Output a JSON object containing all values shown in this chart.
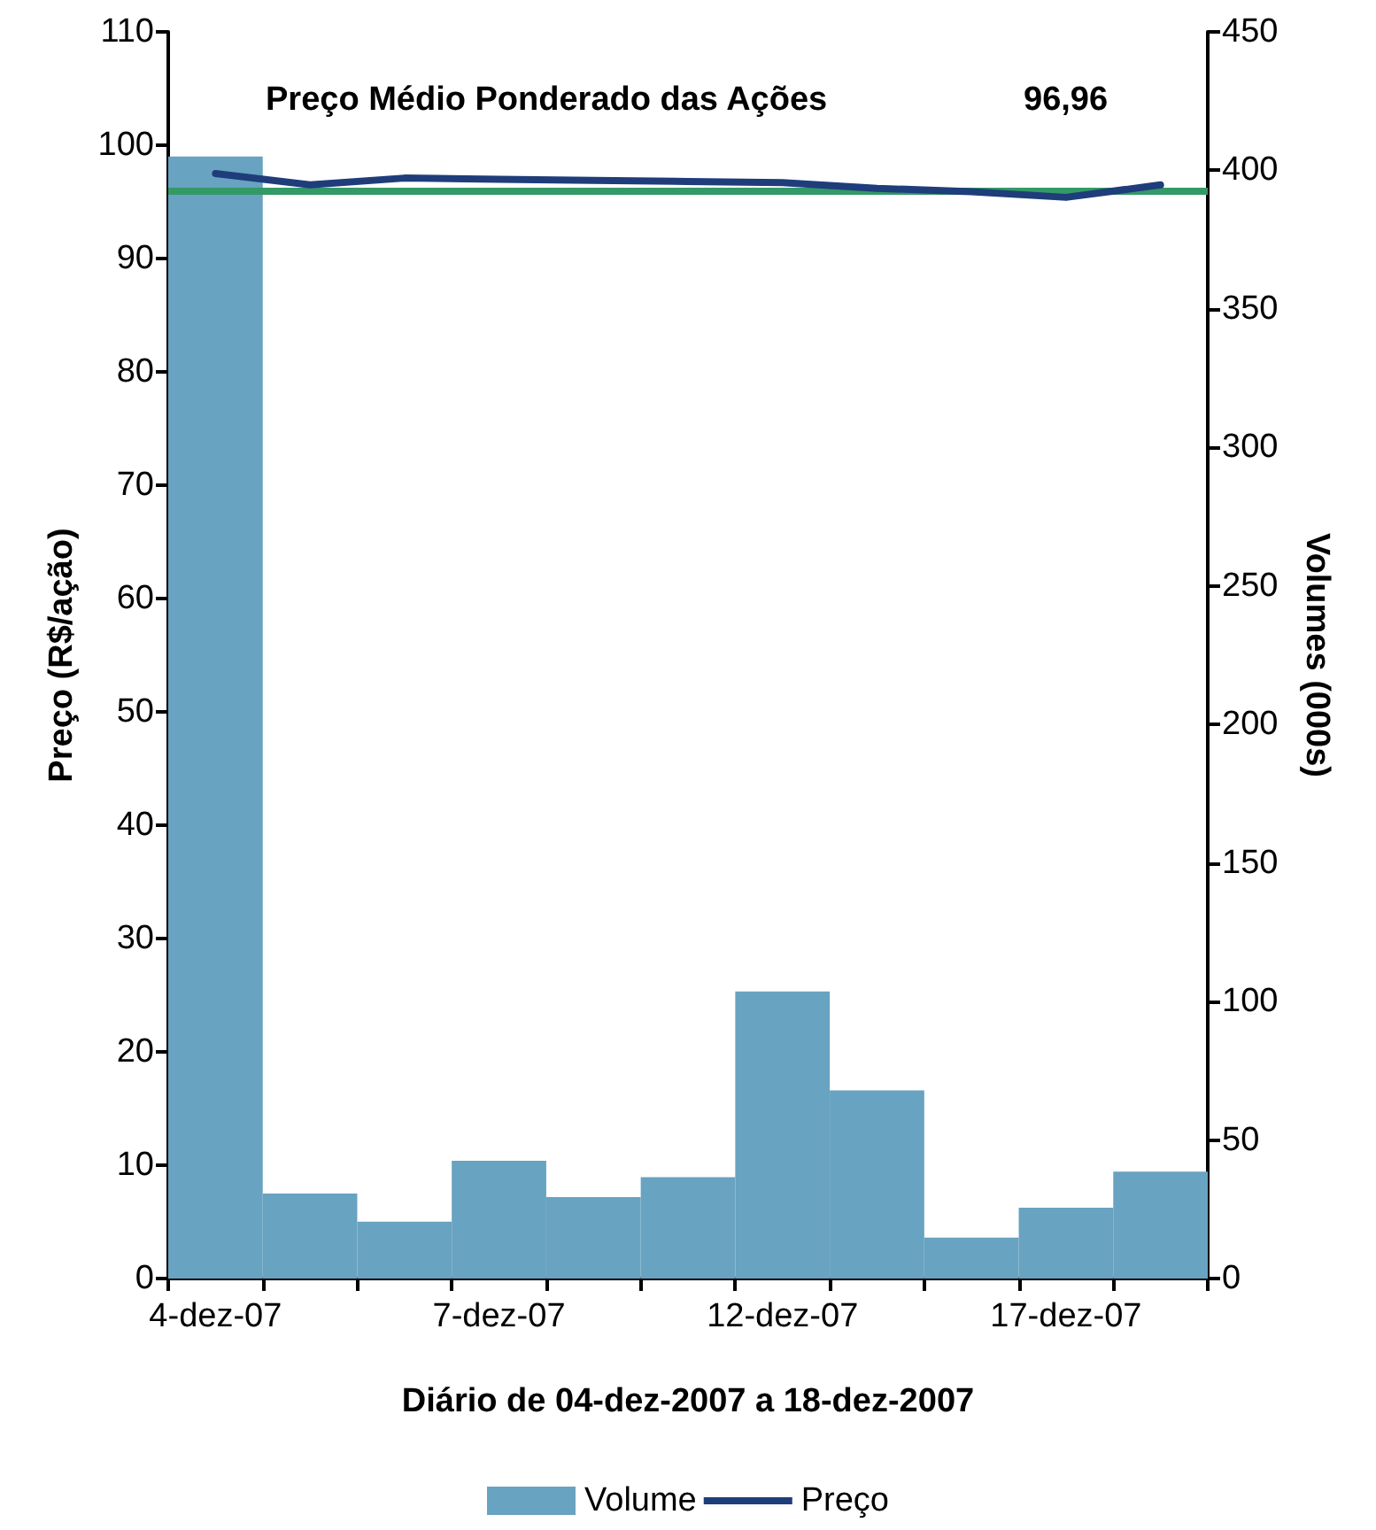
{
  "chart_data": {
    "type": "bar",
    "xlabel": "Diário de 04-dez-2007 a 18-dez-2007",
    "ylabel": "Preço (R$/ação)",
    "y2label": "Volumes (000s)",
    "annotations": [
      "Preço Médio Ponderado das Ações",
      "96,96"
    ],
    "categories": [
      "4-dez-07",
      null,
      null,
      "7-dez-07",
      null,
      null,
      "12-dez-07",
      null,
      null,
      "17-dez-07",
      null
    ],
    "series": [
      {
        "name": "Volume",
        "axis": "y2",
        "color": "#68a3c1",
        "values": [
          405,
          30.7,
          20.5,
          42.5,
          29.4,
          36.6,
          103.6,
          67.9,
          14.8,
          25.6,
          38.6
        ]
      },
      {
        "name": "Preço",
        "type": "line",
        "color": "#1f3d7a",
        "values": [
          97.5,
          96.5,
          97.1,
          97.0,
          96.9,
          96.8,
          96.7,
          96.2,
          95.9,
          95.4,
          96.5
        ]
      }
    ],
    "ref_lines": [
      {
        "axis": "y",
        "value": 95.9,
        "color": "#339966"
      }
    ],
    "ylim": [
      0,
      110
    ],
    "yticks": [
      0,
      10,
      20,
      30,
      40,
      50,
      60,
      70,
      80,
      90,
      100,
      110
    ],
    "y2lim": [
      0,
      450
    ],
    "y2ticks": [
      0,
      50,
      100,
      150,
      200,
      250,
      300,
      350,
      400,
      450
    ],
    "grid": false,
    "legend": "bottom",
    "marker": "none",
    "line_style": "solid"
  }
}
